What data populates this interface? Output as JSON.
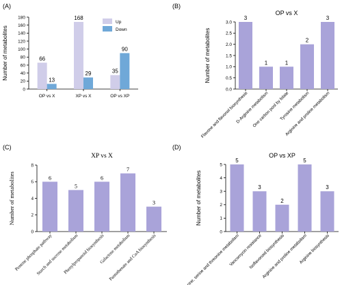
{
  "colors": {
    "up": "#d0cde9",
    "down": "#6fa8d8",
    "bar": "#a9a3d9"
  },
  "chart_data": [
    {
      "panel": "(A)",
      "type": "bar",
      "title": "",
      "ylabel": "Number of metabolites",
      "xlabel": "",
      "ylim": [
        0,
        180
      ],
      "yticks": [
        0,
        20,
        40,
        60,
        80,
        100,
        120,
        140,
        160,
        180
      ],
      "categories": [
        "OP vs X",
        "XP vs X",
        "OP vs XP"
      ],
      "series": [
        {
          "name": "Up",
          "values": [
            66,
            168,
            35
          ]
        },
        {
          "name": "Down",
          "values": [
            13,
            29,
            90
          ]
        }
      ],
      "legend": "top-right"
    },
    {
      "panel": "(B)",
      "type": "bar",
      "title": "OP vs X",
      "ylabel": "Number of metabolites",
      "xlabel": "",
      "ylim": [
        0,
        3.0
      ],
      "yticks": [
        0.0,
        0.5,
        1.0,
        1.5,
        2.0,
        2.5,
        3.0
      ],
      "categories": [
        "Flavone and flavonol biosynthesis",
        "D-Arginine metabolism",
        "One carbon pool by folate",
        "Tyrosine metabolism",
        "Arginine and proline metabolism"
      ],
      "values": [
        3,
        1,
        1,
        2,
        3
      ]
    },
    {
      "panel": "(C)",
      "type": "bar",
      "title": "XP vs X",
      "ylabel": "Number of metabolites",
      "xlabel": "",
      "ylim": [
        0,
        8
      ],
      "yticks": [
        0,
        2,
        4,
        6,
        8
      ],
      "categories": [
        "Pentose phosphate pathway",
        "Starch and sucrose metabolism",
        "Phenylpropanoid biosynthesis",
        "Galactose metabolism",
        "Pantothenate and CoA biosynthesis"
      ],
      "values": [
        6,
        5,
        6,
        7,
        3
      ]
    },
    {
      "panel": "(D)",
      "type": "bar",
      "title": "OP vs XP",
      "ylabel": "Number of metabolites",
      "xlabel": "",
      "ylim": [
        0,
        5
      ],
      "yticks": [
        0,
        1,
        2,
        3,
        4,
        5
      ],
      "categories": [
        "Glycine, serine and threonine metabolism",
        "Vancomycin resistance",
        "Isoflavonoid biosynthesis",
        "Arginine and proline metabolism",
        "Arginine biosynthesis"
      ],
      "values": [
        5,
        3,
        2,
        5,
        3
      ]
    }
  ]
}
